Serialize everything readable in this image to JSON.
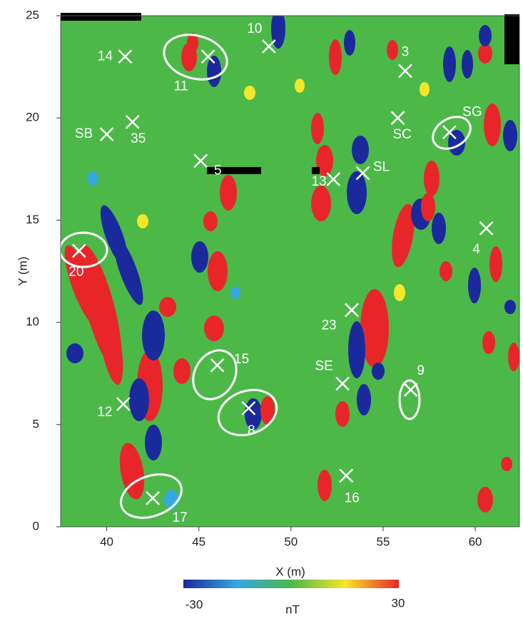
{
  "chart_data": {
    "type": "scatter",
    "xlabel": "X (m)",
    "ylabel": "Y (m)",
    "xlim": [
      37.5,
      62.4
    ],
    "ylim": [
      0,
      25
    ],
    "xticks": [
      40,
      45,
      50,
      55,
      60
    ],
    "yticks": [
      0,
      5,
      10,
      15,
      20,
      25
    ],
    "marker_color": "#ffffff",
    "points": {
      "labels": [
        "14",
        "11",
        "10",
        "3",
        "SB",
        "35",
        "SC",
        "SG",
        "5",
        "13",
        "SL",
        "4",
        "20",
        "23",
        "15",
        "SE",
        "9",
        "12",
        "8",
        "16",
        "17"
      ],
      "x": [
        41.0,
        45.5,
        48.8,
        56.2,
        40.0,
        41.4,
        55.8,
        58.6,
        45.1,
        52.3,
        53.9,
        60.6,
        38.5,
        53.3,
        46.0,
        52.8,
        56.5,
        40.9,
        47.7,
        53.0,
        42.5
      ],
      "y": [
        23.0,
        23.0,
        23.5,
        22.3,
        19.2,
        19.8,
        20.0,
        19.3,
        17.9,
        17.0,
        17.3,
        14.6,
        13.5,
        10.6,
        7.9,
        7.0,
        6.7,
        6.0,
        5.8,
        2.5,
        1.4
      ]
    },
    "colorbar": {
      "label": "nT",
      "range": [
        -30,
        30
      ],
      "ticks": [
        -30,
        30
      ],
      "colors": [
        "#1a2a9c",
        "#35a8e0",
        "#4cb848",
        "#f5e62a",
        "#e8262a"
      ]
    }
  }
}
